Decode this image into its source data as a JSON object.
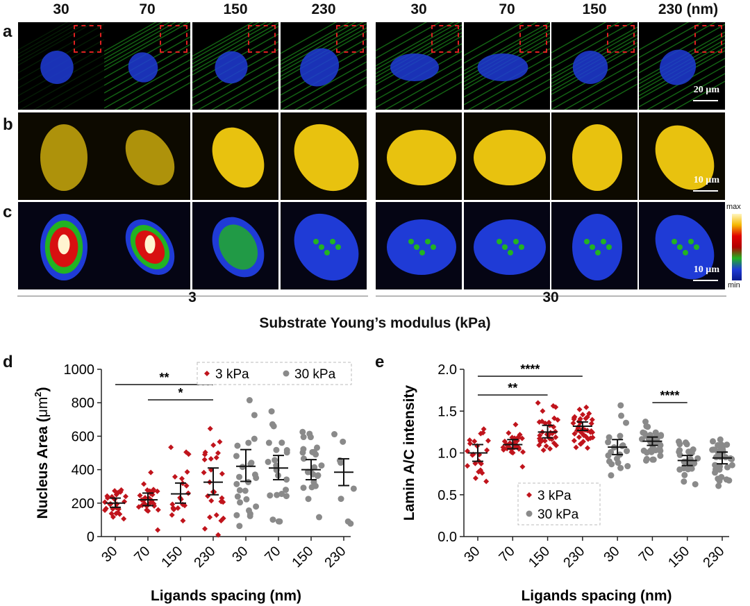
{
  "top_columns": [
    "30",
    "70",
    "150",
    "230",
    "30",
    "70",
    "150",
    "230 (nm)"
  ],
  "row_labels": [
    "a",
    "b",
    "c"
  ],
  "scale_bars": {
    "a": "20 µm",
    "b": "10 µm",
    "c": "10 µm"
  },
  "colorbar": {
    "max": "max",
    "min": "min"
  },
  "groups": [
    "3",
    "30"
  ],
  "top_xtitle": "Substrate Young’s modulus (kPa)",
  "colors": {
    "red": "#c0141c",
    "gray": "#8a8a8a",
    "green": "#22b322",
    "blue": "#1f3bd6",
    "yellow": "#f4cc10"
  },
  "chart_d": {
    "panel_label": "d",
    "ylabel_prefix": "Nucleus Area (",
    "ylabel_unit": "μm",
    "ylabel_sup": "2",
    "ylabel_suffix": ")",
    "xlabel": "Ligands spacing (nm)",
    "legend": [
      "3 kPa",
      "30 kPa"
    ],
    "sig": [
      "**",
      "*"
    ],
    "yticks": [
      "0",
      "200",
      "400",
      "600",
      "800",
      "1000"
    ],
    "xticks": [
      "30",
      "70",
      "150",
      "230",
      "30",
      "70",
      "150",
      "230"
    ]
  },
  "chart_e": {
    "panel_label": "e",
    "ylabel": "Lamin A/C intensity",
    "xlabel": "Ligands spacing (nm)",
    "legend": [
      "3 kPa",
      "30 kPa"
    ],
    "sig": [
      "****",
      "**",
      "****"
    ],
    "yticks": [
      "0.0",
      "0.5",
      "1.0",
      "1.5",
      "2.0"
    ],
    "xticks": [
      "30",
      "70",
      "150",
      "230",
      "30",
      "70",
      "150",
      "230"
    ]
  },
  "chart_data": [
    {
      "type": "scatter",
      "title": "",
      "xlabel": "Ligands spacing (nm)",
      "ylabel": "Nucleus Area (μm2)",
      "ylim": [
        0,
        1000
      ],
      "categories": [
        "30",
        "70",
        "150",
        "230",
        "30",
        "70",
        "150",
        "230"
      ],
      "series": [
        {
          "name": "3 kPa",
          "positions": [
            0,
            1,
            2,
            3
          ],
          "mean": [
            200,
            220,
            255,
            325
          ],
          "err": [
            [
              175,
              230
            ],
            [
              185,
              260
            ],
            [
              200,
              320
            ],
            [
              250,
              410
            ]
          ]
        },
        {
          "name": "30 kPa",
          "positions": [
            4,
            5,
            6,
            7
          ],
          "mean": [
            420,
            410,
            400,
            385
          ],
          "err": [
            [
              330,
              520
            ],
            [
              340,
              485
            ],
            [
              340,
              460
            ],
            [
              305,
              465
            ]
          ]
        }
      ],
      "significance": [
        {
          "from": 0,
          "to": 3,
          "label": "**"
        },
        {
          "from": 1,
          "to": 3,
          "label": "*"
        }
      ]
    },
    {
      "type": "scatter",
      "title": "",
      "xlabel": "Ligands spacing (nm)",
      "ylabel": "Lamin A/C intensity",
      "ylim": [
        0,
        2.0
      ],
      "categories": [
        "30",
        "70",
        "150",
        "230",
        "30",
        "70",
        "150",
        "230"
      ],
      "series": [
        {
          "name": "3 kPa",
          "positions": [
            0,
            1,
            2,
            3
          ],
          "mean": [
            1.0,
            1.1,
            1.25,
            1.32
          ],
          "err": [
            [
              0.9,
              1.1
            ],
            [
              1.05,
              1.16
            ],
            [
              1.18,
              1.33
            ],
            [
              1.27,
              1.37
            ]
          ]
        },
        {
          "name": "30 kPa",
          "positions": [
            4,
            5,
            6,
            7
          ],
          "mean": [
            1.07,
            1.14,
            0.91,
            0.94
          ],
          "err": [
            [
              0.98,
              1.16
            ],
            [
              1.09,
              1.19
            ],
            [
              0.85,
              0.97
            ],
            [
              0.87,
              1.01
            ]
          ]
        }
      ],
      "significance": [
        {
          "from": 0,
          "to": 3,
          "label": "****"
        },
        {
          "from": 0,
          "to": 2,
          "label": "**"
        },
        {
          "from": 5,
          "to": 6,
          "label": "****"
        }
      ]
    }
  ]
}
